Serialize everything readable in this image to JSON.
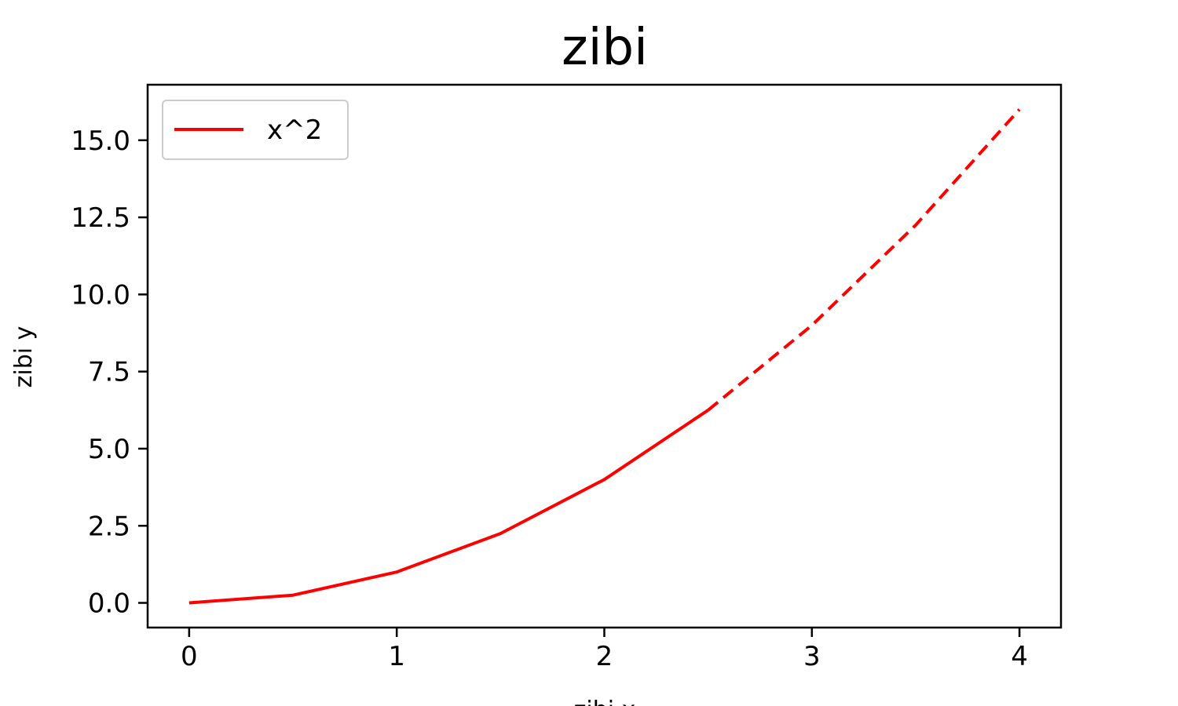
{
  "chart_data": {
    "type": "line",
    "title": "zibi",
    "xlabel": "zibi x",
    "ylabel": "zibi y",
    "xlim": [
      -0.2,
      4.2
    ],
    "ylim": [
      -0.8,
      16.8
    ],
    "x_ticks": [
      0,
      1,
      2,
      3,
      4
    ],
    "x_tick_labels": [
      "0",
      "1",
      "2",
      "3",
      "4"
    ],
    "y_ticks": [
      0,
      2.5,
      5,
      7.5,
      10,
      12.5,
      15
    ],
    "y_tick_labels": [
      "0.0",
      "2.5",
      "5.0",
      "7.5",
      "10.0",
      "12.5",
      "15.0"
    ],
    "grid": false,
    "legend_position": "top-left",
    "series": [
      {
        "name": "x^2",
        "color": "#ff0000",
        "style": "solid",
        "x": [
          0,
          0.5,
          1,
          1.5,
          2,
          2.5
        ],
        "y": [
          0,
          0.25,
          1,
          2.25,
          4,
          6.25
        ]
      },
      {
        "color": "#ff0000",
        "style": "dashed",
        "x": [
          2.5,
          3,
          3.5,
          4
        ],
        "y": [
          6.25,
          9,
          12.25,
          16
        ]
      }
    ]
  }
}
